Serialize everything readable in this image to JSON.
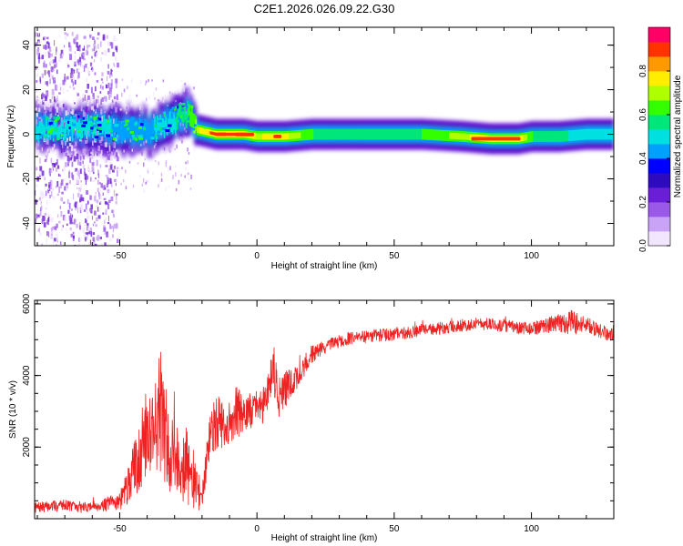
{
  "title": "C2E1.2026.026.09.22.G30",
  "colors": {
    "snr_line": "#ee2222",
    "axis": "#000000",
    "colormap": [
      "#f2e6ff",
      "#c9a3f5",
      "#9b59e8",
      "#6a1fd6",
      "#2e0bbf",
      "#0000ff",
      "#00a0ff",
      "#00e0e0",
      "#00e67a",
      "#33ff00",
      "#b0ff00",
      "#ffee00",
      "#ff9900",
      "#ff3300",
      "#ff0066"
    ]
  },
  "chart_data": [
    {
      "type": "heatmap",
      "name": "spectrogram",
      "xlabel": "Height of straight line (km)",
      "ylabel": "Frequency (Hz)",
      "xlim": [
        -81,
        130
      ],
      "ylim": [
        -50,
        48
      ],
      "xticks": [
        "-50",
        "0",
        "50",
        "100"
      ],
      "xtick_values": [
        -50,
        0,
        50,
        100
      ],
      "yticks": [
        "-40",
        "-20",
        "0",
        "20",
        "40"
      ],
      "ytick_values": [
        -40,
        -20,
        0,
        20,
        40
      ],
      "ridge": {
        "x": [
          -81,
          -70,
          -60,
          -50,
          -40,
          -33,
          -28,
          -25,
          -22,
          -15,
          -5,
          0,
          5,
          10,
          20,
          40,
          60,
          75,
          85,
          95,
          100,
          110,
          120,
          130
        ],
        "freq": [
          3,
          2,
          3,
          2,
          1,
          5,
          8,
          10,
          2,
          0,
          0,
          -1,
          -1,
          -1,
          0,
          0,
          0,
          -1,
          -2,
          -2,
          -1,
          -1,
          0,
          0
        ],
        "amp": [
          0.5,
          0.5,
          0.5,
          0.45,
          0.45,
          0.5,
          0.55,
          0.6,
          0.7,
          0.95,
          0.9,
          0.7,
          0.8,
          0.75,
          0.6,
          0.55,
          0.6,
          0.7,
          0.85,
          0.8,
          0.6,
          0.55,
          0.5,
          0.5
        ]
      },
      "colorbar": {
        "label": "Normalized spectral amplitude",
        "ticks": [
          "0.0",
          "0.2",
          "0.4",
          "0.6",
          "0.8"
        ],
        "tick_values": [
          0.0,
          0.2,
          0.4,
          0.6,
          0.8
        ],
        "range": [
          0,
          1
        ]
      }
    },
    {
      "type": "line",
      "name": "snr",
      "xlabel": "Height of straight line (km)",
      "ylabel": "SNR (10 * v/v)",
      "xlim": [
        -81,
        130
      ],
      "ylim": [
        0,
        6100
      ],
      "xticks": [
        "-50",
        "0",
        "50",
        "100"
      ],
      "xtick_values": [
        -50,
        0,
        50,
        100
      ],
      "yticks": [
        "2000",
        "4000",
        "6000"
      ],
      "ytick_values": [
        2000,
        4000,
        6000
      ],
      "series": [
        {
          "name": "SNR",
          "x": [
            -81,
            -75,
            -70,
            -65,
            -60,
            -55,
            -50,
            -47,
            -44,
            -41,
            -38,
            -35,
            -32,
            -29,
            -26,
            -23,
            -20,
            -17,
            -14,
            -11,
            -8,
            -5,
            -2,
            0,
            2,
            4,
            6,
            8,
            10,
            13,
            16,
            20,
            25,
            30,
            35,
            40,
            50,
            60,
            70,
            80,
            90,
            95,
            100,
            105,
            110,
            115,
            120,
            125,
            130
          ],
          "values": [
            300,
            350,
            400,
            300,
            350,
            400,
            500,
            900,
            1500,
            2300,
            2600,
            2800,
            2000,
            1700,
            1500,
            1000,
            600,
            2400,
            2700,
            2300,
            3100,
            2800,
            3000,
            3200,
            3100,
            3600,
            4300,
            3300,
            3600,
            3800,
            4100,
            4600,
            4800,
            4950,
            5050,
            5100,
            5150,
            5250,
            5350,
            5450,
            5400,
            5300,
            5300,
            5400,
            5450,
            5500,
            5400,
            5250,
            5100
          ],
          "noise": [
            150,
            150,
            150,
            150,
            150,
            200,
            250,
            500,
            900,
            1200,
            1300,
            1500,
            1300,
            1100,
            1100,
            900,
            300,
            700,
            800,
            700,
            800,
            600,
            500,
            400,
            500,
            500,
            700,
            600,
            600,
            400,
            350,
            250,
            200,
            180,
            180,
            180,
            180,
            180,
            180,
            180,
            180,
            200,
            200,
            200,
            300,
            350,
            250,
            200,
            200
          ]
        }
      ]
    }
  ]
}
